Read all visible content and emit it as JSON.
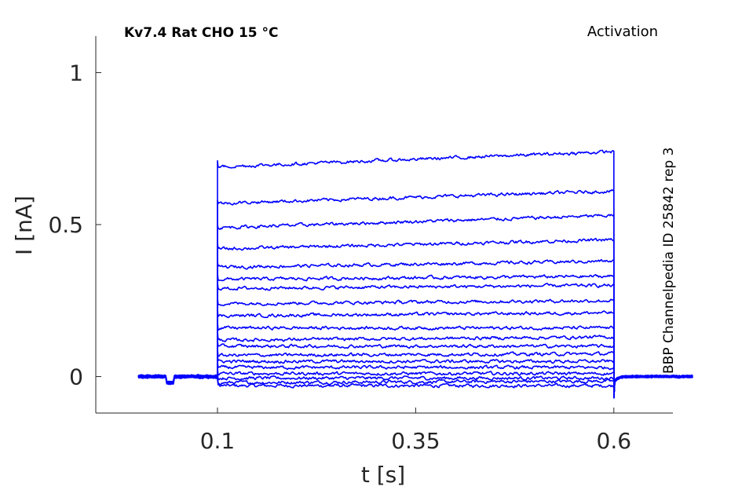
{
  "chart_data": {
    "type": "line",
    "title": "Kv7.4  Rat  CHO  15 °C",
    "protocol_label": "Activation",
    "side_label": "BBP Channelpedia ID 25842 rep 3",
    "xlabel": "t [s]",
    "ylabel": "I [nA]",
    "xlim": [
      -0.0535,
      0.6745
    ],
    "ylim": [
      -0.12,
      1.12
    ],
    "xticks": [
      {
        "value": 0.1,
        "label": "0.1"
      },
      {
        "value": 0.35,
        "label": "0.35"
      },
      {
        "value": 0.6,
        "label": "0.6"
      }
    ],
    "yticks": [
      {
        "value": 0,
        "label": "0"
      },
      {
        "value": 0.5,
        "label": "0.5"
      },
      {
        "value": 1,
        "label": "1"
      }
    ],
    "grid": false,
    "legend": "none",
    "color": "#0000ff",
    "time_range": [
      0.0,
      0.7
    ],
    "step_start": 0.1,
    "step_end": 0.6,
    "series": [
      {
        "start": -0.03,
        "end": -0.03,
        "peak": -0.01
      },
      {
        "start": -0.02,
        "end": -0.015,
        "peak": 0.0
      },
      {
        "start": -0.005,
        "end": -0.005,
        "peak": 0.01
      },
      {
        "start": 0.01,
        "end": 0.01,
        "peak": 0.03
      },
      {
        "start": 0.03,
        "end": 0.03,
        "peak": 0.05
      },
      {
        "start": 0.05,
        "end": 0.05,
        "peak": 0.07
      },
      {
        "start": 0.07,
        "end": 0.075,
        "peak": 0.09
      },
      {
        "start": 0.1,
        "end": 0.1,
        "peak": 0.12
      },
      {
        "start": 0.12,
        "end": 0.13,
        "peak": 0.15
      },
      {
        "start": 0.16,
        "end": 0.16,
        "peak": 0.18
      },
      {
        "start": 0.2,
        "end": 0.21,
        "peak": 0.22
      },
      {
        "start": 0.24,
        "end": 0.25,
        "peak": 0.26
      },
      {
        "start": 0.29,
        "end": 0.3,
        "peak": 0.31
      },
      {
        "start": 0.32,
        "end": 0.33,
        "peak": 0.34
      },
      {
        "start": 0.36,
        "end": 0.38,
        "peak": 0.38
      },
      {
        "start": 0.42,
        "end": 0.45,
        "peak": 0.44
      },
      {
        "start": 0.49,
        "end": 0.53,
        "peak": 0.5
      },
      {
        "start": 0.57,
        "end": 0.61,
        "peak": 0.58
      },
      {
        "start": 0.69,
        "end": 0.74,
        "peak": 0.71
      }
    ]
  }
}
